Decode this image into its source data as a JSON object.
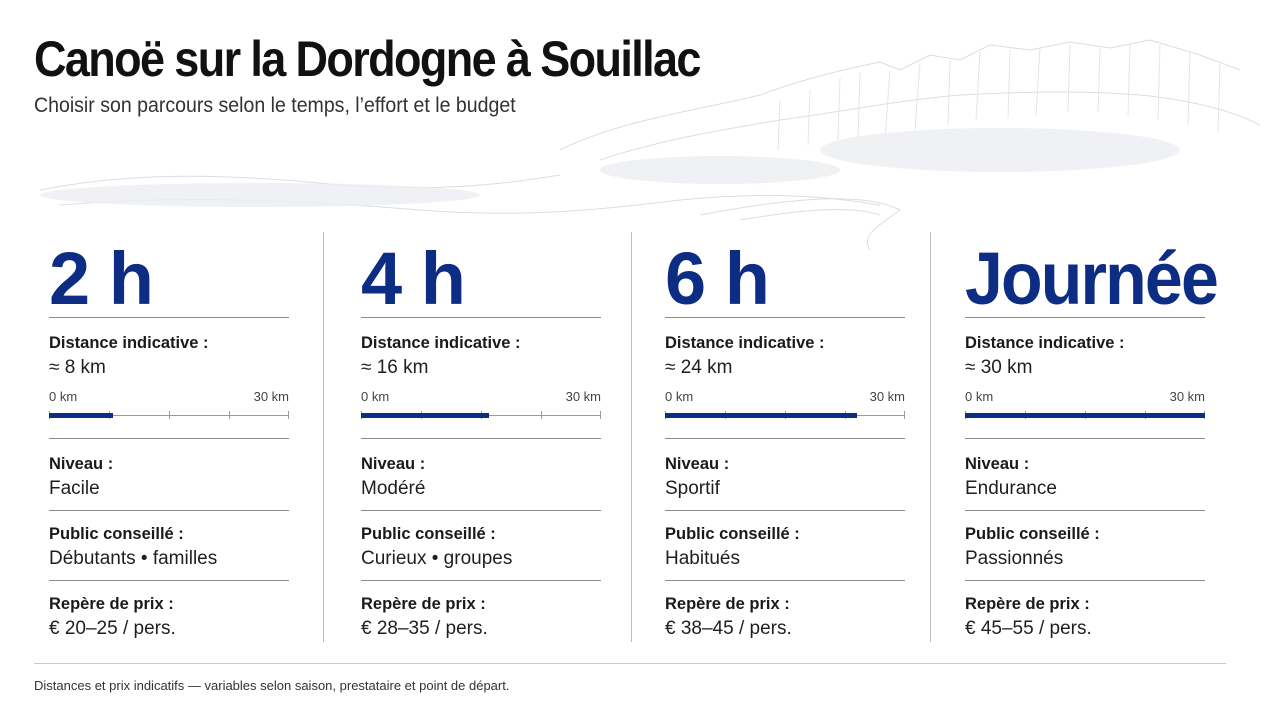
{
  "header": {
    "title": "Canoë sur la Dordogne à Souillac",
    "subtitle": "Choisir son parcours selon le temps, l’effort et le budget"
  },
  "labels": {
    "distance": "Distance indicative :",
    "level": "Niveau :",
    "audience": "Public conseillé :",
    "price": "Repère de prix :",
    "scale_min": "0 km",
    "scale_max": "30 km"
  },
  "scale_max_km": 30,
  "accent_color": "#0c2d83",
  "options": [
    {
      "duration": "2 h",
      "distance": "≈ 8 km",
      "km": 8,
      "level": "Facile",
      "audience": "Débutants • familles",
      "price": "€ 20–25 / pers."
    },
    {
      "duration": "4 h",
      "distance": "≈ 16 km",
      "km": 16,
      "level": "Modéré",
      "audience": "Curieux • groupes",
      "price": "€ 28–35 / pers."
    },
    {
      "duration": "6 h",
      "distance": "≈ 24 km",
      "km": 24,
      "level": "Sportif",
      "audience": "Habitués",
      "price": "€ 38–45 / pers."
    },
    {
      "duration": "Journée",
      "distance": "≈ 30 km",
      "km": 30,
      "level": "Endurance",
      "audience": "Passionnés",
      "price": "€ 45–55 / pers."
    }
  ],
  "footer": "Distances et prix indicatifs — variables selon saison, prestataire et point de départ."
}
